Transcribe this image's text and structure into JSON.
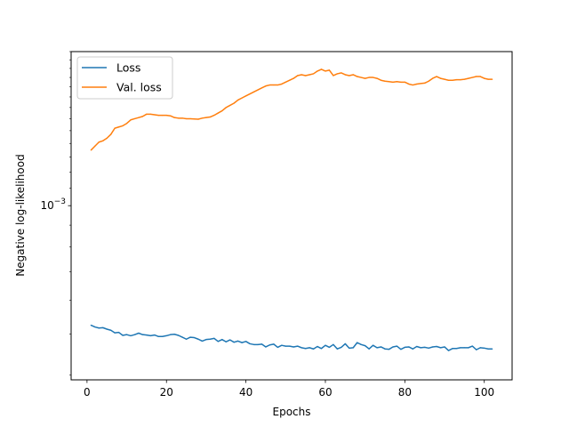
{
  "chart_data": {
    "type": "line",
    "xlabel": "Epochs",
    "ylabel": "Negative log-likelihood",
    "yscale": "log",
    "xlim": [
      -4,
      107
    ],
    "ylim": [
      0.00039,
      0.0023
    ],
    "xticks": [
      0,
      20,
      40,
      60,
      80,
      100
    ],
    "yticks": [
      {
        "value": 0.001,
        "base": "10",
        "exp": "−3"
      }
    ],
    "grid": false,
    "legend": "top-left",
    "series": [
      {
        "name": "Loss",
        "color": "#1f77b4",
        "points": [
          [
            1,
            0.000524
          ],
          [
            2,
            0.000519
          ],
          [
            3,
            0.000516
          ],
          [
            4,
            0.000517
          ],
          [
            5,
            0.000513
          ],
          [
            6,
            0.00051
          ],
          [
            7,
            0.000503
          ],
          [
            8,
            0.000504
          ],
          [
            9,
            0.000496
          ],
          [
            10,
            0.000498
          ],
          [
            11,
            0.000495
          ],
          [
            12,
            0.000498
          ],
          [
            13,
            0.000502
          ],
          [
            14,
            0.000498
          ],
          [
            15,
            0.000497
          ],
          [
            16,
            0.000495
          ],
          [
            17,
            0.000497
          ],
          [
            18,
            0.000493
          ],
          [
            19,
            0.000493
          ],
          [
            20,
            0.000495
          ],
          [
            21,
            0.000498
          ],
          [
            22,
            0.000499
          ],
          [
            23,
            0.000496
          ],
          [
            24,
            0.000491
          ],
          [
            25,
            0.000486
          ],
          [
            26,
            0.000491
          ],
          [
            27,
            0.00049
          ],
          [
            28,
            0.000486
          ],
          [
            29,
            0.000481
          ],
          [
            30,
            0.000485
          ],
          [
            31,
            0.000486
          ],
          [
            32,
            0.000488
          ],
          [
            33,
            0.00048
          ],
          [
            34,
            0.000485
          ],
          [
            35,
            0.000479
          ],
          [
            36,
            0.000484
          ],
          [
            37,
            0.000478
          ],
          [
            38,
            0.000481
          ],
          [
            39,
            0.000477
          ],
          [
            40,
            0.00048
          ],
          [
            41,
            0.000474
          ],
          [
            42,
            0.000472
          ],
          [
            43,
            0.000472
          ],
          [
            44,
            0.000473
          ],
          [
            45,
            0.000466
          ],
          [
            46,
            0.000471
          ],
          [
            47,
            0.000473
          ],
          [
            48,
            0.000465
          ],
          [
            49,
            0.00047
          ],
          [
            50,
            0.000468
          ],
          [
            51,
            0.000468
          ],
          [
            52,
            0.000466
          ],
          [
            53,
            0.000468
          ],
          [
            54,
            0.000464
          ],
          [
            55,
            0.000462
          ],
          [
            56,
            0.000464
          ],
          [
            57,
            0.000461
          ],
          [
            58,
            0.000467
          ],
          [
            59,
            0.000462
          ],
          [
            60,
            0.00047
          ],
          [
            61,
            0.000465
          ],
          [
            62,
            0.000472
          ],
          [
            63,
            0.000461
          ],
          [
            64,
            0.000465
          ],
          [
            65,
            0.000474
          ],
          [
            66,
            0.000463
          ],
          [
            67,
            0.000464
          ],
          [
            68,
            0.000477
          ],
          [
            69,
            0.000472
          ],
          [
            70,
            0.000469
          ],
          [
            71,
            0.000461
          ],
          [
            72,
            0.00047
          ],
          [
            73,
            0.000464
          ],
          [
            74,
            0.000466
          ],
          [
            75,
            0.000461
          ],
          [
            76,
            0.00046
          ],
          [
            77,
            0.000466
          ],
          [
            78,
            0.000468
          ],
          [
            79,
            0.00046
          ],
          [
            80,
            0.000465
          ],
          [
            81,
            0.000466
          ],
          [
            82,
            0.000461
          ],
          [
            83,
            0.000467
          ],
          [
            84,
            0.000464
          ],
          [
            85,
            0.000465
          ],
          [
            86,
            0.000463
          ],
          [
            87,
            0.000466
          ],
          [
            88,
            0.000467
          ],
          [
            89,
            0.000464
          ],
          [
            90,
            0.000466
          ],
          [
            91,
            0.000457
          ],
          [
            92,
            0.000462
          ],
          [
            93,
            0.000462
          ],
          [
            94,
            0.000464
          ],
          [
            95,
            0.000464
          ],
          [
            96,
            0.000464
          ],
          [
            97,
            0.000468
          ],
          [
            98,
            0.000459
          ],
          [
            99,
            0.000464
          ],
          [
            100,
            0.000463
          ],
          [
            101,
            0.000461
          ],
          [
            102,
            0.000461
          ]
        ]
      },
      {
        "name": "Val. loss",
        "color": "#ff7f0e",
        "points": [
          [
            1,
            0.00135
          ],
          [
            2,
            0.00138
          ],
          [
            3,
            0.00141
          ],
          [
            4,
            0.00142
          ],
          [
            5,
            0.00144
          ],
          [
            6,
            0.00147
          ],
          [
            7,
            0.00152
          ],
          [
            8,
            0.00153
          ],
          [
            9,
            0.00154
          ],
          [
            10,
            0.00156
          ],
          [
            11,
            0.00159
          ],
          [
            12,
            0.0016
          ],
          [
            13,
            0.00161
          ],
          [
            14,
            0.00162
          ],
          [
            15,
            0.00164
          ],
          [
            16,
            0.00164
          ],
          [
            17,
            0.001635
          ],
          [
            18,
            0.00163
          ],
          [
            19,
            0.00163
          ],
          [
            20,
            0.00163
          ],
          [
            21,
            0.001625
          ],
          [
            22,
            0.00161
          ],
          [
            23,
            0.001605
          ],
          [
            24,
            0.001605
          ],
          [
            25,
            0.0016
          ],
          [
            26,
            0.0016
          ],
          [
            27,
            0.001598
          ],
          [
            28,
            0.001596
          ],
          [
            29,
            0.001605
          ],
          [
            30,
            0.00161
          ],
          [
            31,
            0.001615
          ],
          [
            32,
            0.00163
          ],
          [
            33,
            0.00165
          ],
          [
            34,
            0.00167
          ],
          [
            35,
            0.0017
          ],
          [
            36,
            0.00172
          ],
          [
            37,
            0.00174
          ],
          [
            38,
            0.00177
          ],
          [
            39,
            0.00179
          ],
          [
            40,
            0.00181
          ],
          [
            41,
            0.00183
          ],
          [
            42,
            0.00185
          ],
          [
            43,
            0.00187
          ],
          [
            44,
            0.00189
          ],
          [
            45,
            0.00191
          ],
          [
            46,
            0.00192
          ],
          [
            47,
            0.00192
          ],
          [
            48,
            0.00192
          ],
          [
            49,
            0.00193
          ],
          [
            50,
            0.00195
          ],
          [
            51,
            0.00197
          ],
          [
            52,
            0.00199
          ],
          [
            53,
            0.00202
          ],
          [
            54,
            0.00203
          ],
          [
            55,
            0.00202
          ],
          [
            56,
            0.00203
          ],
          [
            57,
            0.00204
          ],
          [
            58,
            0.00207
          ],
          [
            59,
            0.00209
          ],
          [
            60,
            0.00207
          ],
          [
            61,
            0.00208
          ],
          [
            62,
            0.00202
          ],
          [
            63,
            0.00204
          ],
          [
            64,
            0.00205
          ],
          [
            65,
            0.00203
          ],
          [
            66,
            0.00202
          ],
          [
            67,
            0.00203
          ],
          [
            68,
            0.00201
          ],
          [
            69,
            0.002
          ],
          [
            70,
            0.00199
          ],
          [
            71,
            0.002
          ],
          [
            72,
            0.002
          ],
          [
            73,
            0.00199
          ],
          [
            74,
            0.00197
          ],
          [
            75,
            0.00196
          ],
          [
            76,
            0.001955
          ],
          [
            77,
            0.00195
          ],
          [
            78,
            0.001955
          ],
          [
            79,
            0.00195
          ],
          [
            80,
            0.00195
          ],
          [
            81,
            0.00193
          ],
          [
            82,
            0.00192
          ],
          [
            83,
            0.00193
          ],
          [
            84,
            0.001935
          ],
          [
            85,
            0.00194
          ],
          [
            86,
            0.00196
          ],
          [
            87,
            0.00199
          ],
          [
            88,
            0.00201
          ],
          [
            89,
            0.00199
          ],
          [
            90,
            0.00198
          ],
          [
            91,
            0.00197
          ],
          [
            92,
            0.00197
          ],
          [
            93,
            0.001975
          ],
          [
            94,
            0.001975
          ],
          [
            95,
            0.00198
          ],
          [
            96,
            0.00199
          ],
          [
            97,
            0.002
          ],
          [
            98,
            0.00201
          ],
          [
            99,
            0.00201
          ],
          [
            100,
            0.00199
          ],
          [
            101,
            0.00198
          ],
          [
            102,
            0.00198
          ]
        ]
      }
    ]
  }
}
